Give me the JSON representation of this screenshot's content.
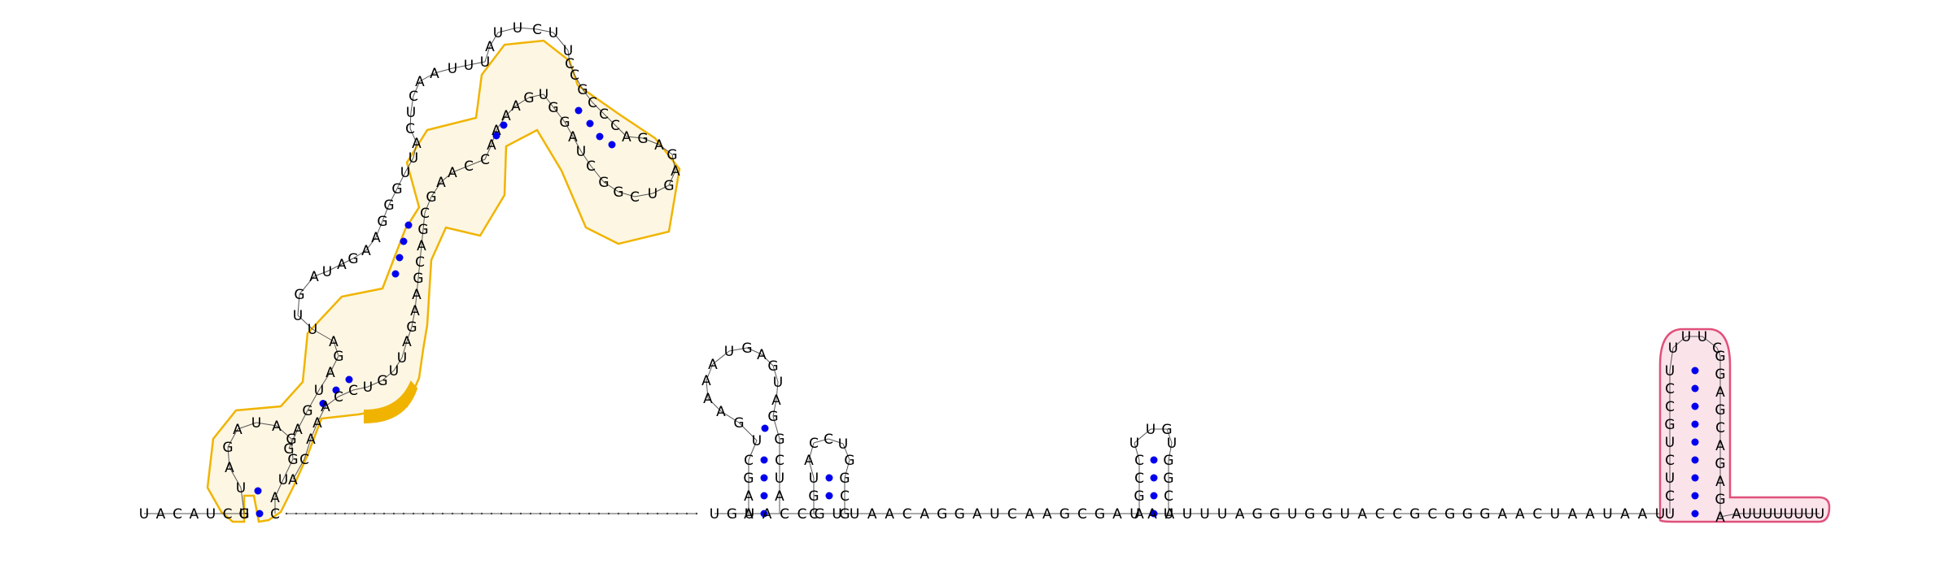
{
  "diagram": {
    "type": "rna-secondary-structure",
    "colors": {
      "highlight_outline": "#f0b400",
      "highlight_fill": "#fdf6e3",
      "highlight_strong": "#f0b400",
      "terminator_outline": "#e0507a",
      "terminator_fill": "#fbe3ea",
      "base_pair_dot": "#0000ee",
      "backbone": "#555555"
    },
    "backbone_sequence": {
      "left_tail": "UACAUCG",
      "after_loop": "UUC",
      "middle": "UGUACCGUUAACAGGAUCAAGCGAUAAUUUAGGUGGUACCGCGGGAACUAAUAAU",
      "right_tail": "AUUUUUUUU"
    },
    "small_hairpins": [
      {
        "name": "hairpin-1",
        "stem_5p": "AAGC",
        "loop": "GUAAAAUGAGUA",
        "stem_3p": "GCUA"
      },
      {
        "name": "hairpin-2",
        "stem_5p": "GU",
        "loop": "ACCUG",
        "stem_3p": "GC"
      },
      {
        "name": "hairpin-3",
        "stem_5p": "GCC",
        "loop": "UUGU",
        "stem_3p": "GGC"
      }
    ],
    "terminator": {
      "stem_5p": "UCUCUGCCU",
      "loop": "UUUC",
      "stem_3p": "GGAGCAGAGA"
    }
  }
}
